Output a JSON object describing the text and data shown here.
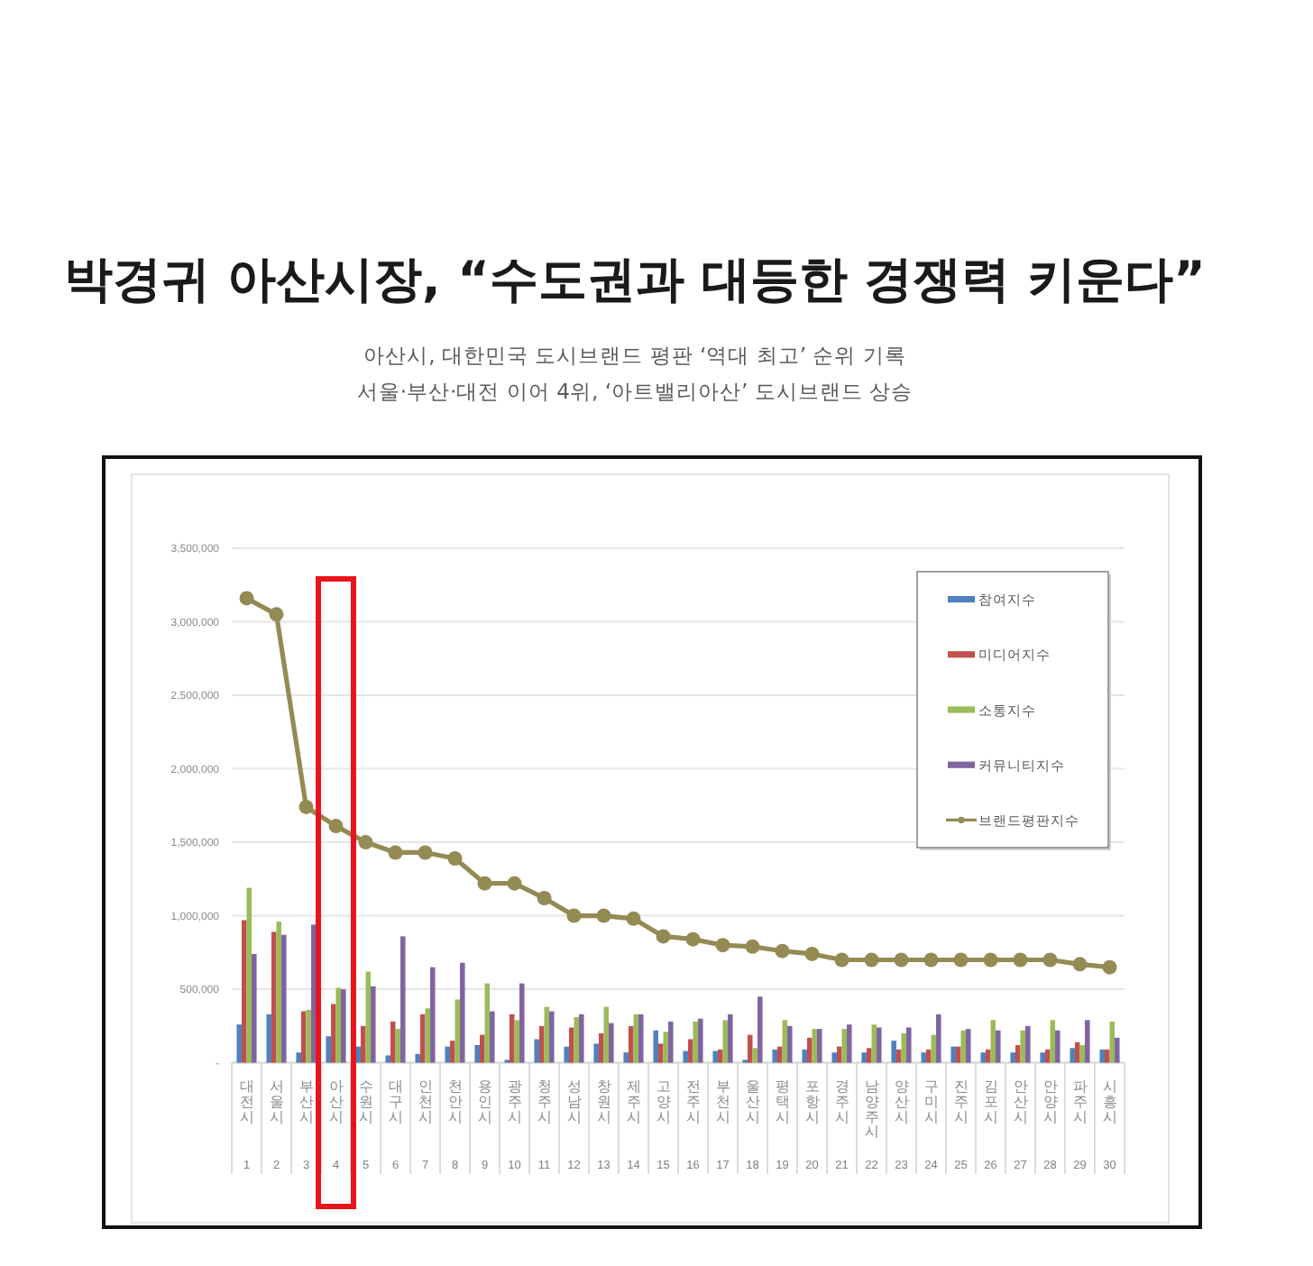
{
  "chart_data": {
    "type": "bar",
    "title": "박경귀 아산시장, “수도권과 대등한 경쟁력 키운다”",
    "subtitle": "아산시, 대한민국 도시브랜드 평판 ‘역대 최고’ 순위 기록\n서울·부산·대전 이어 4위, ‘아트밸리아산’ 도시브랜드 상승",
    "categories": [
      "대전시",
      "서울시",
      "부산시",
      "아산시",
      "수원시",
      "대구시",
      "인천시",
      "천안시",
      "용인시",
      "광주시",
      "청주시",
      "성남시",
      "창원시",
      "제주시",
      "고양시",
      "전주시",
      "부천시",
      "울산시",
      "평택시",
      "포항시",
      "경주시",
      "남양주시",
      "양산시",
      "구미시",
      "진주시",
      "김포시",
      "안산시",
      "안양시",
      "파주시",
      "시흥시"
    ],
    "series": [
      {
        "name": "참여지수",
        "color": "#4f81bd",
        "values": [
          260000,
          330000,
          70000,
          180000,
          110000,
          50000,
          60000,
          110000,
          120000,
          20000,
          160000,
          110000,
          130000,
          70000,
          220000,
          80000,
          80000,
          20000,
          90000,
          90000,
          70000,
          70000,
          150000,
          70000,
          110000,
          70000,
          70000,
          70000,
          100000,
          90000
        ]
      },
      {
        "name": "미디어지수",
        "color": "#c0504d",
        "values": [
          970000,
          890000,
          350000,
          400000,
          250000,
          280000,
          330000,
          150000,
          190000,
          330000,
          250000,
          240000,
          200000,
          250000,
          130000,
          160000,
          90000,
          190000,
          110000,
          170000,
          110000,
          100000,
          90000,
          90000,
          110000,
          90000,
          120000,
          90000,
          140000,
          90000
        ]
      },
      {
        "name": "소통지수",
        "color": "#9bbb59",
        "values": [
          1190000,
          960000,
          360000,
          510000,
          620000,
          230000,
          370000,
          430000,
          540000,
          290000,
          380000,
          310000,
          380000,
          330000,
          210000,
          280000,
          290000,
          100000,
          290000,
          230000,
          230000,
          260000,
          200000,
          190000,
          220000,
          290000,
          220000,
          290000,
          120000,
          280000
        ]
      },
      {
        "name": "커뮤니티지수",
        "color": "#8064a2",
        "values": [
          740000,
          870000,
          940000,
          500000,
          520000,
          860000,
          650000,
          680000,
          350000,
          540000,
          350000,
          330000,
          270000,
          330000,
          280000,
          300000,
          330000,
          450000,
          250000,
          230000,
          260000,
          240000,
          240000,
          330000,
          230000,
          220000,
          250000,
          220000,
          290000,
          170000
        ]
      },
      {
        "name": "브랜드평판지수",
        "type": "line",
        "color": "#948a54",
        "values": [
          3160000,
          3050000,
          1740000,
          1610000,
          1500000,
          1430000,
          1430000,
          1390000,
          1220000,
          1220000,
          1120000,
          1000000,
          1000000,
          980000,
          860000,
          840000,
          800000,
          790000,
          760000,
          740000,
          700000,
          700000,
          700000,
          700000,
          700000,
          700000,
          700000,
          700000,
          670000,
          650000
        ]
      }
    ],
    "ylim": [
      0,
      3500000
    ],
    "yticks": [
      {
        "value": 0,
        "label": "-"
      },
      {
        "value": 500000,
        "label": "500,000"
      },
      {
        "value": 1000000,
        "label": "1,000,000"
      },
      {
        "value": 1500000,
        "label": "1,500,000"
      },
      {
        "value": 2000000,
        "label": "2,000,000"
      },
      {
        "value": 2500000,
        "label": "2,500,000"
      },
      {
        "value": 3000000,
        "label": "3,000,000"
      },
      {
        "value": 3500000,
        "label": "3,500,000"
      }
    ],
    "grid": "y",
    "legend": "top right",
    "marker": "circle",
    "line_style": "solid",
    "annotations": [
      "1",
      "2",
      "3",
      "4",
      "5",
      "6",
      "7",
      "8",
      "9",
      "10",
      "11",
      "12",
      "13",
      "14",
      "15",
      "16",
      "17",
      "18",
      "19",
      "20",
      "21",
      "22",
      "23",
      "24",
      "25",
      "26",
      "27",
      "28",
      "29",
      "30"
    ]
  }
}
